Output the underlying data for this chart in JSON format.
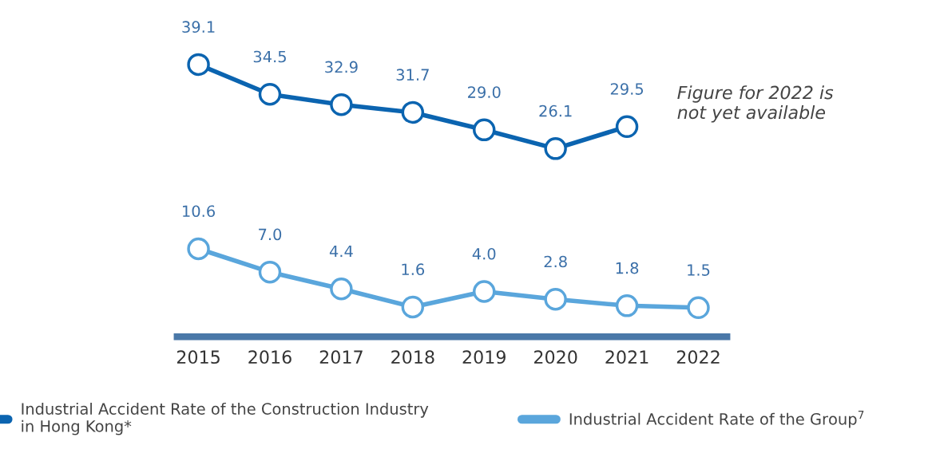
{
  "chart_data": {
    "type": "line",
    "categories": [
      "2015",
      "2016",
      "2017",
      "2018",
      "2019",
      "2020",
      "2021",
      "2022"
    ],
    "series": [
      {
        "name": "Industrial Accident Rate of the Construction Industry\nin Hong Kong*",
        "color": "#0b64b0",
        "values": [
          39.1,
          34.5,
          32.9,
          31.7,
          29.0,
          26.1,
          29.5,
          null
        ],
        "value_labels": [
          "39.1",
          "34.5",
          "32.9",
          "31.7",
          "29.0",
          "26.1",
          "29.5",
          null
        ]
      },
      {
        "name": "Industrial Accident Rate of the Group$^{7}$",
        "color": "#5aa6dc",
        "values": [
          10.6,
          7.0,
          4.4,
          1.6,
          4.0,
          2.8,
          1.8,
          1.5
        ],
        "value_labels": [
          "10.6",
          "7.0",
          "4.4",
          "1.6",
          "4.0",
          "2.8",
          "1.8",
          "1.5"
        ]
      }
    ],
    "marker": "circle",
    "line_style": "solid",
    "grid": false,
    "legend": "bottom",
    "tick_labels": "x",
    "annotations": [
      "Figure for 2022 is\nnot yet available"
    ]
  }
}
